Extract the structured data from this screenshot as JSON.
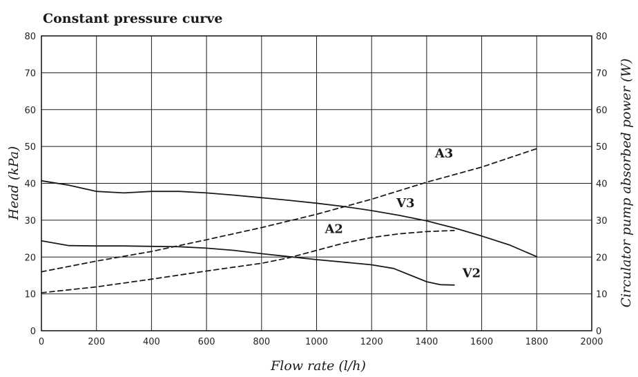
{
  "chart_data": {
    "type": "line",
    "title": "Constant pressure curve",
    "xlabel": "Flow rate (l/h)",
    "ylabel": "Head (kPa)",
    "y2label": "Circulator pump absorbed power (W)",
    "xlim": [
      0,
      2000
    ],
    "ylim": [
      0,
      80
    ],
    "y2lim": [
      0,
      80
    ],
    "x_ticks": [
      "0",
      "200",
      "400",
      "600",
      "800",
      "1000",
      "1200",
      "1400",
      "1600",
      "1800",
      "2000"
    ],
    "y_ticks": [
      "0",
      "10",
      "20",
      "30",
      "40",
      "50",
      "60",
      "70",
      "80"
    ],
    "grid": true,
    "series": [
      {
        "name": "V3",
        "axis": "left",
        "style": "solid",
        "x": [
          0,
          100,
          200,
          300,
          400,
          500,
          600,
          700,
          800,
          900,
          1000,
          1100,
          1200,
          1300,
          1400,
          1500,
          1600,
          1700,
          1800
        ],
        "y": [
          40.7,
          39.5,
          37.8,
          37.4,
          37.8,
          37.8,
          37.4,
          36.8,
          36.1,
          35.4,
          34.6,
          33.7,
          32.6,
          31.3,
          29.8,
          27.9,
          25.7,
          23.3,
          20.1
        ]
      },
      {
        "name": "V2",
        "axis": "left",
        "style": "solid",
        "x": [
          0,
          100,
          200,
          300,
          400,
          500,
          600,
          700,
          800,
          900,
          1000,
          1100,
          1200,
          1280,
          1350,
          1400,
          1450,
          1500
        ],
        "y": [
          24.4,
          23.1,
          23.0,
          23.0,
          22.9,
          22.8,
          22.4,
          21.8,
          20.9,
          20.1,
          19.3,
          18.6,
          17.9,
          16.9,
          14.8,
          13.3,
          12.5,
          12.4
        ]
      },
      {
        "name": "A3",
        "axis": "right",
        "style": "dashed",
        "x": [
          0,
          200,
          400,
          600,
          800,
          1000,
          1200,
          1400,
          1600,
          1800
        ],
        "y": [
          16.0,
          18.9,
          21.5,
          24.7,
          28.0,
          31.6,
          35.7,
          40.3,
          44.4,
          49.4
        ]
      },
      {
        "name": "A2",
        "axis": "right",
        "style": "dashed",
        "x": [
          0,
          200,
          400,
          600,
          800,
          900,
          1000,
          1100,
          1200,
          1300,
          1400,
          1500
        ],
        "y": [
          10.3,
          11.9,
          14.0,
          16.2,
          18.3,
          19.8,
          21.8,
          23.8,
          25.3,
          26.3,
          26.9,
          27.2
        ]
      }
    ]
  }
}
